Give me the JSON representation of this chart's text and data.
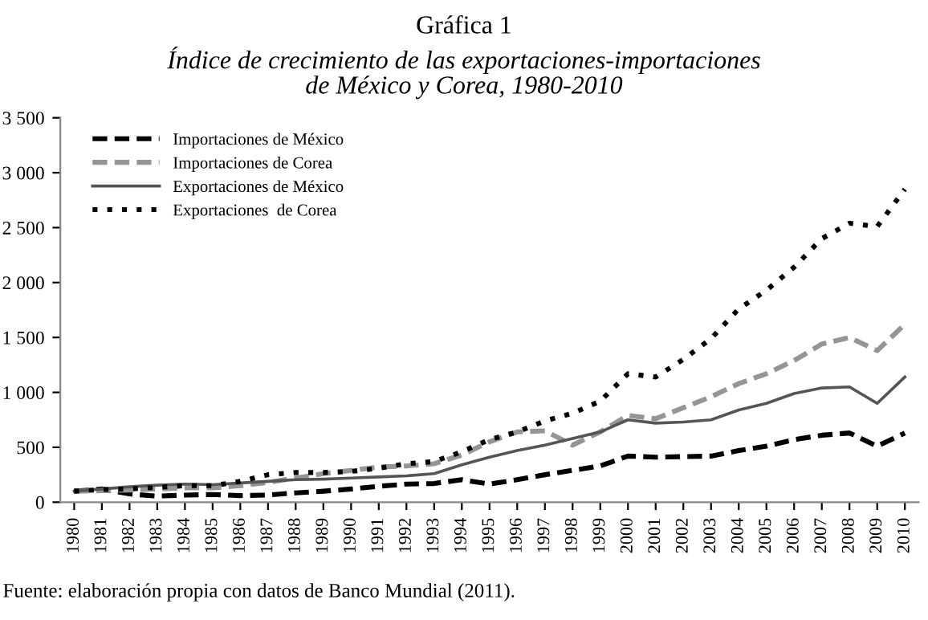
{
  "chart_data": {
    "type": "line",
    "title": "Gráfica 1",
    "subtitle": "Índice de crecimiento de las exportaciones-importaciones\nde México y Corea, 1980-2010",
    "categories": [
      "1980",
      "1981",
      "1982",
      "1983",
      "1984",
      "1985",
      "1986",
      "1987",
      "1988",
      "1989",
      "1990",
      "1991",
      "1992",
      "1993",
      "1994",
      "1995",
      "1996",
      "1997",
      "1998",
      "1999",
      "2000",
      "2001",
      "2002",
      "2003",
      "2004",
      "2005",
      "2006",
      "2007",
      "2008",
      "2009",
      "2010"
    ],
    "series": [
      {
        "name": "Importaciones de México",
        "color": "#000000",
        "line_style": "dashed",
        "values": [
          100,
          120,
          75,
          55,
          65,
          70,
          60,
          65,
          85,
          100,
          120,
          145,
          165,
          170,
          205,
          165,
          205,
          250,
          290,
          330,
          420,
          410,
          415,
          420,
          470,
          510,
          570,
          610,
          630,
          510,
          630
        ]
      },
      {
        "name": "Importaciones de Corea",
        "color": "#959595",
        "line_style": "dashed",
        "values": [
          100,
          105,
          110,
          120,
          130,
          130,
          150,
          180,
          220,
          260,
          290,
          320,
          330,
          350,
          430,
          550,
          640,
          650,
          520,
          640,
          790,
          760,
          860,
          960,
          1080,
          1170,
          1290,
          1440,
          1500,
          1380,
          1620
        ]
      },
      {
        "name": "Exportaciones de México",
        "color": "#555555",
        "line_style": "solid",
        "values": [
          100,
          120,
          140,
          155,
          165,
          160,
          175,
          190,
          205,
          210,
          220,
          230,
          240,
          260,
          340,
          410,
          470,
          520,
          580,
          640,
          750,
          720,
          730,
          750,
          840,
          900,
          990,
          1040,
          1050,
          900,
          1140
        ]
      },
      {
        "name": "Exportaciones  de Corea",
        "color": "#000000",
        "line_style": "dotted",
        "values": [
          100,
          115,
          120,
          135,
          150,
          150,
          190,
          250,
          270,
          270,
          280,
          310,
          350,
          370,
          460,
          570,
          640,
          740,
          810,
          920,
          1170,
          1140,
          1300,
          1490,
          1760,
          1930,
          2140,
          2400,
          2540,
          2510,
          2850
        ]
      }
    ],
    "ylim": [
      0,
      3500
    ],
    "yticks": [
      0,
      500,
      {
        "value": 1000,
        "label": "1 000"
      },
      {
        "value": 1500,
        "label": "1 500"
      },
      {
        "value": 2000,
        "label": "2 000"
      },
      {
        "value": 2500,
        "label": "2 500"
      },
      {
        "value": 3000,
        "label": "3 000"
      },
      {
        "value": 3500,
        "label": "3 500"
      }
    ],
    "legend": "top left",
    "annotations": [
      "Fuente: elaboración propia con datos de Banco Mundial (2011)."
    ]
  }
}
